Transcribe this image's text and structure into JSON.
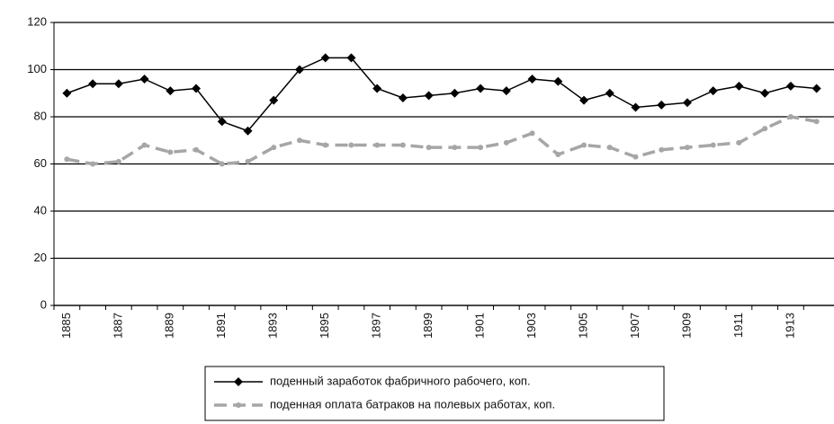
{
  "chart_data": {
    "type": "line",
    "categories": [
      "1885",
      null,
      "1887",
      null,
      "1889",
      null,
      "1891",
      null,
      "1893",
      null,
      "1895",
      null,
      "1897",
      null,
      "1899",
      null,
      "1901",
      null,
      "1903",
      null,
      "1905",
      null,
      "1907",
      null,
      "1909",
      null,
      "1911",
      null,
      "1913",
      null
    ],
    "series": [
      {
        "name": "поденный заработок фабричного рабочего, коп.",
        "color": "#000000",
        "dashed": false,
        "marker": "diamond",
        "values": [
          90,
          94,
          94,
          96,
          91,
          92,
          78,
          74,
          87,
          100,
          105,
          105,
          92,
          88,
          89,
          90,
          92,
          91,
          96,
          95,
          87,
          90,
          84,
          85,
          86,
          91,
          93,
          90,
          93,
          92
        ]
      },
      {
        "name": "поденная оплата батраков на полевых работах, коп.",
        "color": "#a6a6a6",
        "dashed": true,
        "marker": "circle",
        "values": [
          62,
          60,
          61,
          68,
          65,
          66,
          60,
          61,
          67,
          70,
          68,
          68,
          68,
          68,
          67,
          67,
          67,
          69,
          73,
          64,
          68,
          67,
          63,
          66,
          67,
          68,
          69,
          75,
          80,
          78
        ]
      }
    ],
    "ylim": [
      0,
      120
    ],
    "yticks": [
      0,
      20,
      40,
      60,
      80,
      100,
      120
    ],
    "grid": true,
    "legend": "bottom"
  }
}
